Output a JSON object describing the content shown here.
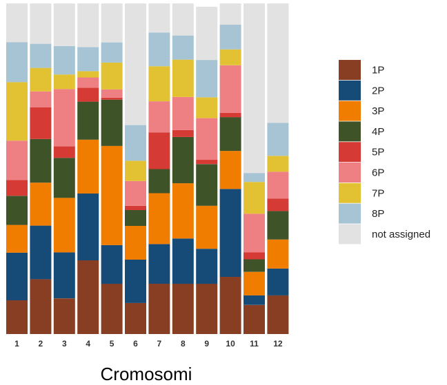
{
  "chart_data": {
    "type": "bar",
    "stacked": true,
    "xlabel": "Cromosomi",
    "ylabel": "",
    "ylim": [
      0,
      100
    ],
    "categories": [
      "1",
      "2",
      "3",
      "4",
      "5",
      "6",
      "7",
      "8",
      "9",
      "10",
      "11",
      "12"
    ],
    "series": [
      {
        "name": "1P",
        "color": "#873E23",
        "values": [
          10.2,
          16.6,
          10.8,
          22.3,
          15.2,
          9.4,
          15.2,
          15.2,
          15.2,
          17.3,
          8.8,
          11.7
        ]
      },
      {
        "name": "2P",
        "color": "#164B77",
        "values": [
          14.4,
          16.2,
          13.9,
          20.2,
          11.7,
          13.1,
          12.0,
          13.7,
          10.6,
          26.6,
          2.9,
          8.1
        ]
      },
      {
        "name": "3P",
        "color": "#F07C00",
        "values": [
          8.4,
          13.0,
          16.5,
          16.3,
          30.0,
          10.2,
          15.4,
          16.7,
          13.0,
          11.5,
          7.1,
          8.8
        ]
      },
      {
        "name": "4P",
        "color": "#3F5329",
        "values": [
          8.8,
          13.2,
          12.1,
          11.5,
          14.0,
          4.8,
          7.3,
          14.0,
          12.6,
          10.2,
          3.8,
          8.6
        ]
      },
      {
        "name": "5P",
        "color": "#D53A35",
        "values": [
          4.8,
          9.6,
          3.5,
          4.2,
          0.6,
          1.3,
          11.1,
          2.1,
          1.3,
          1.3,
          2.1,
          3.8
        ]
      },
      {
        "name": "6P",
        "color": "#EE8083",
        "values": [
          11.9,
          4.8,
          17.3,
          3.1,
          2.5,
          7.5,
          9.4,
          10.0,
          12.6,
          14.4,
          11.7,
          8.1
        ]
      },
      {
        "name": "7P",
        "color": "#E2C232",
        "values": [
          17.7,
          7.1,
          4.4,
          1.9,
          8.1,
          6.1,
          10.6,
          11.3,
          6.3,
          4.8,
          9.6,
          4.8
        ]
      },
      {
        "name": "8P",
        "color": "#A6C4D4",
        "values": [
          12.1,
          7.3,
          8.6,
          7.3,
          6.1,
          10.8,
          10.2,
          7.3,
          11.3,
          7.5,
          2.7,
          10.0
        ]
      },
      {
        "name": "not assigned",
        "color": "#E2E2E2",
        "values": [
          11.7,
          12.2,
          12.9,
          13.2,
          11.8,
          36.8,
          8.8,
          9.7,
          16.1,
          6.4,
          51.3,
          36.1
        ]
      }
    ]
  }
}
